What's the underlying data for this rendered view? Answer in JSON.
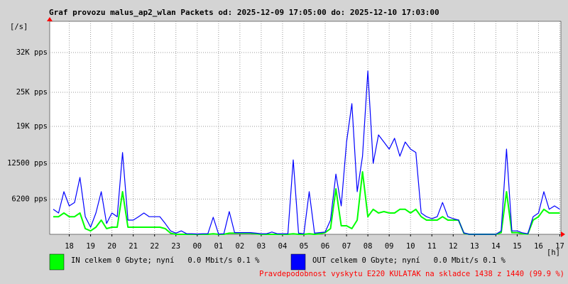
{
  "chart_data": {
    "type": "line",
    "title": "Graf provozu malus_ap2_wlan Packets od: 2025-12-09 17:05:00 do: 2025-12-10 17:03:00",
    "y_label": "[/s]",
    "x_label": "[h]",
    "footnote": "Pravdepodobnost vyskytu E220 KULATAK na skladce 1438 z 1440 (99.9 %)",
    "xlim": [
      17.0833,
      41.05
    ],
    "xticks": [
      {
        "value": 18,
        "label": "18"
      },
      {
        "value": 19,
        "label": "19"
      },
      {
        "value": 20,
        "label": "20"
      },
      {
        "value": 21,
        "label": "21"
      },
      {
        "value": 22,
        "label": "22"
      },
      {
        "value": 23,
        "label": "23"
      },
      {
        "value": 24,
        "label": "00"
      },
      {
        "value": 25,
        "label": "01"
      },
      {
        "value": 26,
        "label": "02"
      },
      {
        "value": 27,
        "label": "03"
      },
      {
        "value": 28,
        "label": "04"
      },
      {
        "value": 29,
        "label": "05"
      },
      {
        "value": 30,
        "label": "06"
      },
      {
        "value": 31,
        "label": "07"
      },
      {
        "value": 32,
        "label": "08"
      },
      {
        "value": 33,
        "label": "09"
      },
      {
        "value": 34,
        "label": "10"
      },
      {
        "value": 35,
        "label": "11"
      },
      {
        "value": 36,
        "label": "12"
      },
      {
        "value": 37,
        "label": "13"
      },
      {
        "value": 38,
        "label": "14"
      },
      {
        "value": 39,
        "label": "15"
      },
      {
        "value": 40,
        "label": "16"
      },
      {
        "value": 41,
        "label": "17"
      }
    ],
    "ylim": [
      0,
      37500
    ],
    "yticks": [
      {
        "value": 6200,
        "label": "6200 pps"
      },
      {
        "value": 12500,
        "label": "12500 pps"
      },
      {
        "value": 19000,
        "label": "19K pps"
      },
      {
        "value": 25000,
        "label": "25K pps"
      },
      {
        "value": 32000,
        "label": "32K pps"
      }
    ],
    "grid": true,
    "x": [
      17.25,
      17.5,
      17.75,
      18,
      18.25,
      18.5,
      18.75,
      19,
      19.25,
      19.5,
      19.75,
      20,
      20.25,
      20.5,
      20.75,
      21,
      21.25,
      21.5,
      21.75,
      22,
      22.25,
      22.5,
      22.75,
      23,
      23.25,
      23.5,
      23.75,
      24,
      24.25,
      24.5,
      24.75,
      25,
      25.25,
      25.5,
      25.75,
      26,
      26.25,
      26.5,
      26.75,
      27,
      27.25,
      27.5,
      27.75,
      28,
      28.25,
      28.5,
      28.75,
      29,
      29.25,
      29.5,
      29.75,
      30,
      30.25,
      30.5,
      30.75,
      31,
      31.25,
      31.5,
      31.75,
      32,
      32.25,
      32.5,
      32.75,
      33,
      33.25,
      33.5,
      33.75,
      34,
      34.25,
      34.5,
      34.75,
      35,
      35.25,
      35.5,
      35.75,
      36,
      36.25,
      36.5,
      36.75,
      37,
      37.25,
      37.5,
      37.75,
      38,
      38.25,
      38.5,
      38.75,
      39,
      39.25,
      39.5,
      39.75,
      40,
      40.25,
      40.5,
      40.75,
      41
    ],
    "series": [
      {
        "name": "IN celkem 0 Gbyte; nyní   0.0 Mbit/s 0.1 %",
        "color": "#00ff00",
        "values": [
          3100,
          3100,
          3750,
          3100,
          3100,
          3750,
          1000,
          600,
          1250,
          2500,
          1000,
          1250,
          1250,
          7500,
          1250,
          1250,
          1250,
          1250,
          1250,
          1250,
          1250,
          1000,
          200,
          0,
          0,
          0,
          0,
          0,
          0,
          0,
          100,
          0,
          0,
          200,
          200,
          200,
          200,
          200,
          100,
          0,
          0,
          0,
          0,
          0,
          0,
          100,
          0,
          0,
          100,
          0,
          100,
          300,
          1000,
          8000,
          1500,
          1500,
          1000,
          2500,
          11000,
          3100,
          4400,
          3750,
          4000,
          3750,
          3750,
          4400,
          4400,
          3750,
          4400,
          3100,
          2500,
          2500,
          2500,
          3100,
          2500,
          2500,
          2500,
          200,
          0,
          0,
          0,
          0,
          0,
          0,
          300,
          7500,
          300,
          300,
          100,
          50,
          2500,
          3100,
          4400,
          3750,
          3750,
          3750
        ]
      },
      {
        "name": "OUT celkem 0 Gbyte; nyní   0.0 Mbit/s 0.1 %",
        "color": "#0000ff",
        "values": [
          4400,
          3750,
          7500,
          5000,
          5600,
          10000,
          3100,
          1250,
          3750,
          7500,
          1900,
          3750,
          3100,
          14400,
          2500,
          2500,
          3100,
          3750,
          3100,
          3100,
          3100,
          1900,
          600,
          200,
          600,
          100,
          100,
          50,
          100,
          100,
          3000,
          50,
          100,
          4000,
          300,
          300,
          300,
          300,
          200,
          100,
          100,
          400,
          100,
          100,
          100,
          13100,
          200,
          100,
          7500,
          200,
          300,
          400,
          2500,
          10600,
          5000,
          16250,
          23000,
          7500,
          13750,
          28750,
          12500,
          17500,
          16250,
          15000,
          16900,
          13750,
          16250,
          15000,
          14400,
          3750,
          3100,
          2750,
          3100,
          5600,
          3100,
          2750,
          2500,
          250,
          0,
          0,
          0,
          0,
          0,
          0,
          600,
          15000,
          600,
          600,
          250,
          100,
          3100,
          3750,
          7500,
          4400,
          5000,
          4400
        ]
      }
    ]
  }
}
